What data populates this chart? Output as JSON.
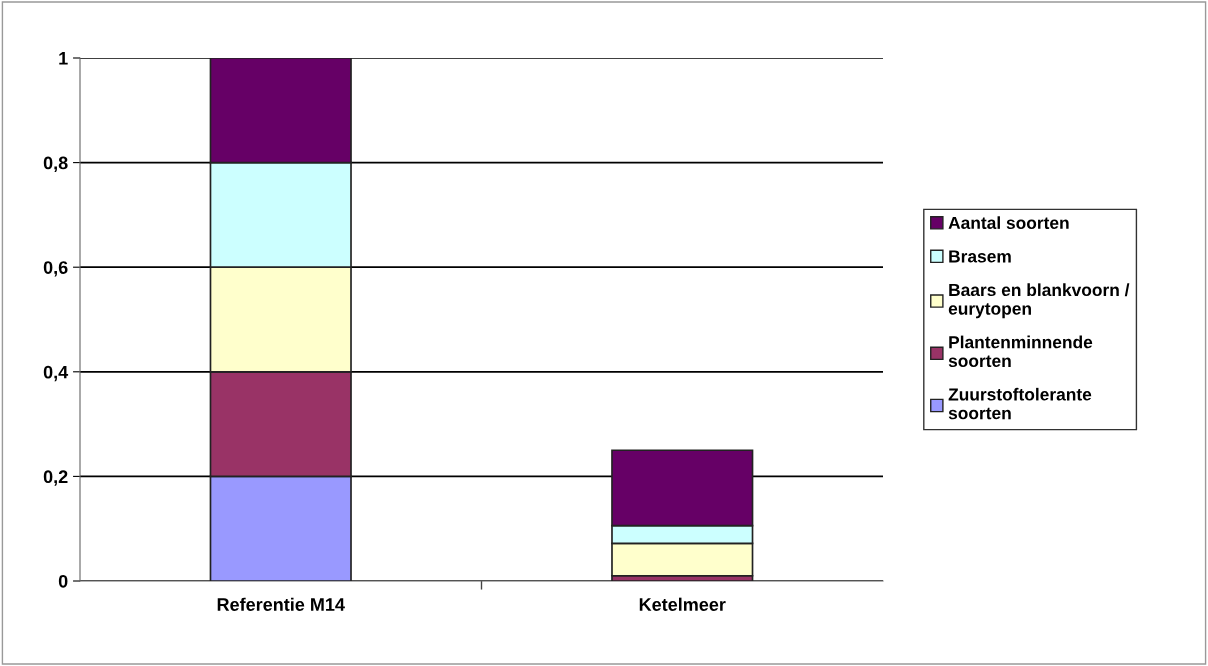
{
  "chart_data": {
    "type": "bar",
    "stacked": true,
    "categories": [
      "Referentie M14",
      "Ketelmeer"
    ],
    "series": [
      {
        "name": "Zuurstoftolerante soorten",
        "color": "#9999ff",
        "values": [
          0.2,
          0
        ]
      },
      {
        "name": "Plantenminnende soorten",
        "color": "#993366",
        "values": [
          0.2,
          0.01
        ]
      },
      {
        "name": "Baars en blankvoorn / eurytopen",
        "color": "#ffffcc",
        "values": [
          0.2,
          0.062
        ]
      },
      {
        "name": "Brasem",
        "color": "#ccffff",
        "values": [
          0.2,
          0.034
        ]
      },
      {
        "name": "Aantal soorten",
        "color": "#660066",
        "values": [
          0.2,
          0.144
        ]
      }
    ],
    "ylim": [
      0,
      1
    ],
    "yticks": [
      {
        "value": 0,
        "label": "0"
      },
      {
        "value": 0.2,
        "label": "0,2"
      },
      {
        "value": 0.4,
        "label": "0,4"
      },
      {
        "value": 0.6,
        "label": "0,6"
      },
      {
        "value": 0.8,
        "label": "0,8"
      },
      {
        "value": 1,
        "label": "1"
      }
    ],
    "grid": "y",
    "legend": "right"
  }
}
